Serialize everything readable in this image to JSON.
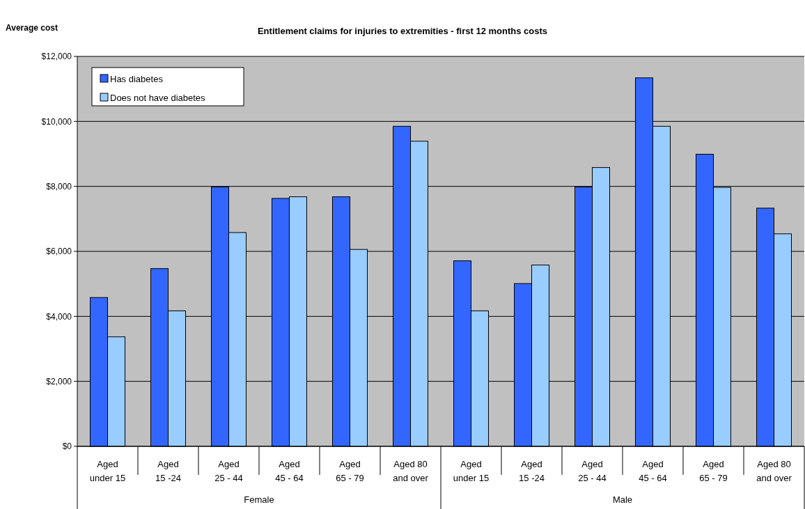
{
  "chart_data": {
    "type": "bar",
    "title": "Entitlement claims for injuries to extremities - first 12 months costs",
    "ylabel": "Average cost",
    "categories": [
      "Aged under 15",
      "Aged 15 -24",
      "Aged 25 - 44",
      "Aged 45 - 64",
      "Aged 65 - 79",
      "Aged 80 and over",
      "Aged under 15",
      "Aged 15 -24",
      "Aged 25 - 44",
      "Aged 45 - 64",
      "Aged 65 - 79",
      "Aged 80 and over"
    ],
    "series": [
      {
        "name": "Has diabetes",
        "color": "#3366ff",
        "values": [
          4580,
          5470,
          7980,
          7630,
          7680,
          9850,
          5710,
          5010,
          7980,
          11340,
          8990,
          7330
        ]
      },
      {
        "name": "Does not have diabetes",
        "color": "#99ccff",
        "values": [
          3370,
          4170,
          6580,
          7680,
          6060,
          9390,
          4170,
          5580,
          8580,
          9850,
          7970,
          6540
        ]
      }
    ],
    "annotations": [
      "Female",
      "Male"
    ],
    "ylim": [
      0,
      12000
    ],
    "yticks": [
      {
        "value": 0,
        "label": "$0"
      },
      {
        "value": 2000,
        "label": "$2,000"
      },
      {
        "value": 4000,
        "label": "$4,000"
      },
      {
        "value": 6000,
        "label": "$6,000"
      },
      {
        "value": 8000,
        "label": "$8,000"
      },
      {
        "value": 10000,
        "label": "$10,000"
      },
      {
        "value": 12000,
        "label": "$12,000"
      }
    ],
    "grid": "y",
    "legend": "top left"
  }
}
